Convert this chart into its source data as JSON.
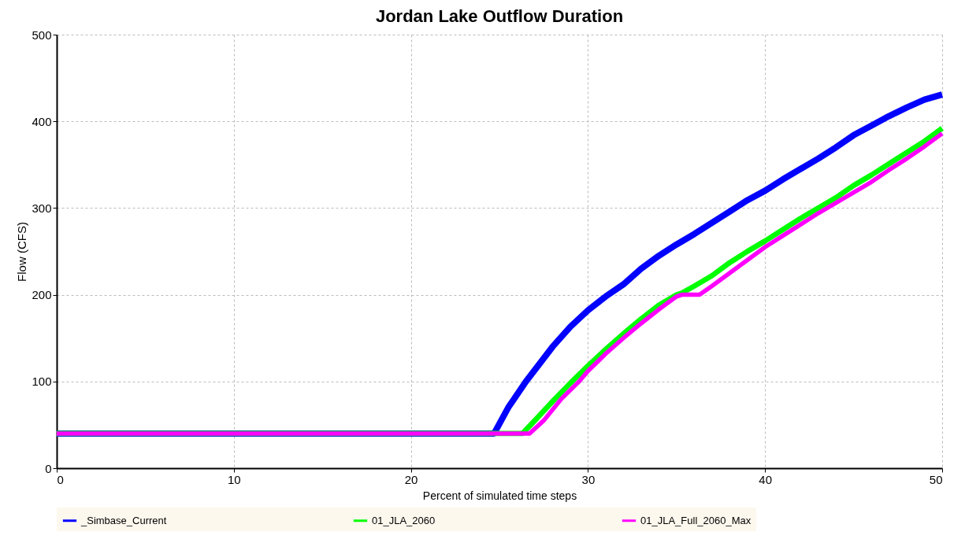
{
  "chart_data": {
    "type": "line",
    "title": "Jordan Lake Outflow Duration",
    "xlabel": "Percent of simulated time steps",
    "ylabel": "Flow (CFS)",
    "xlim": [
      0,
      50
    ],
    "xticks": [
      0,
      10,
      20,
      30,
      40,
      50
    ],
    "ylim": [
      0,
      500
    ],
    "yticks": [
      0,
      100,
      200,
      300,
      400,
      500
    ],
    "grid": true,
    "legend": "bottom",
    "line_style": "solid",
    "series": [
      {
        "name": "_Simbase_Current",
        "color": "#0000ff",
        "x": [
          0,
          24.7,
          25.5,
          26.5,
          28,
          29,
          30,
          31,
          32,
          33,
          34,
          35,
          36,
          37,
          38,
          39,
          40,
          41,
          42,
          43,
          44,
          45,
          46,
          47,
          48,
          49,
          50
        ],
        "values": [
          40,
          40,
          70,
          100,
          140,
          163,
          182,
          198,
          212,
          230,
          245,
          258,
          270,
          283,
          296,
          309,
          320,
          333,
          345,
          357,
          370,
          384,
          395,
          406,
          416,
          425,
          431
        ]
      },
      {
        "name": "01_JLA_2060",
        "color": "#00ff00",
        "x": [
          0,
          26.3,
          27,
          28,
          29,
          30,
          31,
          32,
          33,
          34,
          35,
          35.3,
          36,
          37,
          38,
          39,
          40,
          41,
          42,
          43,
          44,
          45,
          46,
          47,
          48,
          49,
          50
        ],
        "values": [
          40,
          40,
          55,
          77,
          98,
          118,
          137,
          155,
          172,
          188,
          200,
          202,
          210,
          222,
          237,
          250,
          262,
          275,
          288,
          300,
          312,
          326,
          338,
          351,
          364,
          377,
          392
        ]
      },
      {
        "name": "01_JLA_Full_2060_Max",
        "color": "#ff00ff",
        "x": [
          0,
          26.7,
          27.5,
          28.5,
          29.5,
          30,
          31,
          32,
          33,
          34,
          35,
          35.3,
          36.3,
          37,
          38,
          39,
          40,
          41,
          42,
          43,
          44,
          45,
          46,
          47,
          48,
          49,
          50
        ],
        "values": [
          40,
          40,
          55,
          80,
          100,
          112,
          132,
          150,
          167,
          183,
          198,
          200,
          200,
          210,
          225,
          240,
          255,
          268,
          281,
          294,
          306,
          318,
          330,
          344,
          357,
          371,
          386
        ]
      }
    ]
  }
}
